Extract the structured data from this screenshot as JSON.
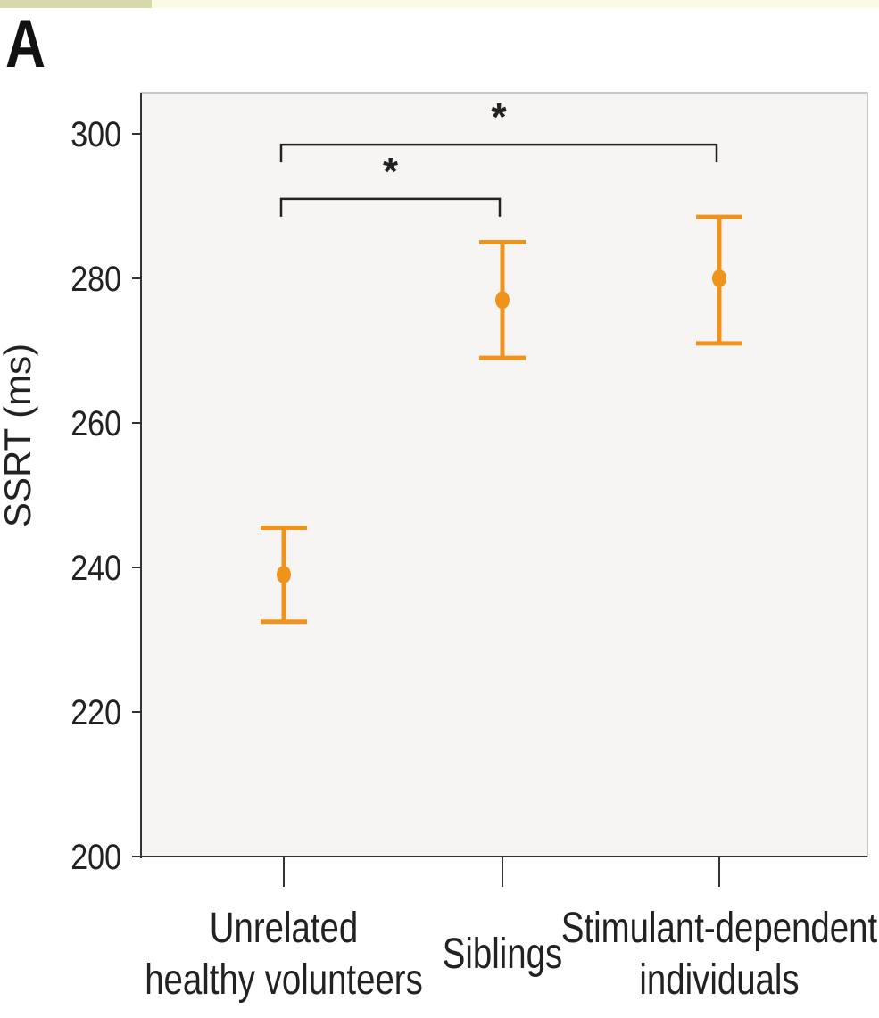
{
  "panel_label": "A",
  "colors": {
    "top_strip_left": "#d8d8a8",
    "top_strip_right": "#fbfbe4",
    "plot_background": "#f7f5f3",
    "plot_border": "#b8b6b4",
    "marker": "#f0931c",
    "axis": "#333333",
    "bracket": "#222222"
  },
  "chart_data": {
    "type": "scatter",
    "title": "",
    "xlabel": "",
    "ylabel": "SSRT (ms)",
    "ylim": [
      200,
      305
    ],
    "yticks": [
      200,
      220,
      240,
      260,
      280,
      300
    ],
    "grid": false,
    "categories": [
      [
        "Unrelated",
        "healthy volunteers"
      ],
      [
        "Siblings"
      ],
      [
        "Stimulant-dependent",
        "individuals"
      ]
    ],
    "series": [
      {
        "values": [
          239,
          277,
          280
        ],
        "error_low": [
          232.5,
          269,
          271
        ],
        "error_high": [
          245.5,
          285,
          288.5
        ]
      }
    ],
    "annotations": [
      {
        "from": 0,
        "to": 1,
        "y": 291,
        "label": "*"
      },
      {
        "from": 0,
        "to": 2,
        "y": 298.5,
        "label": "*"
      }
    ]
  }
}
